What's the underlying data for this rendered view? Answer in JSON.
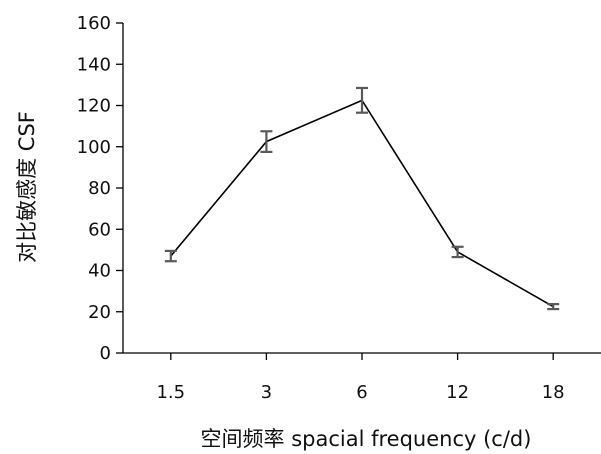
{
  "chart_data": {
    "type": "line",
    "categories": [
      "1.5",
      "3",
      "6",
      "12",
      "18"
    ],
    "values": [
      47,
      102.5,
      122.5,
      49,
      22.5
    ],
    "error": [
      2.5,
      5,
      6,
      2.5,
      1.2
    ],
    "xlabel": "空间频率 spacial frequency (c/d)",
    "ylabel": "对比敏感度 CSF",
    "ylim": [
      0,
      160
    ],
    "yticks": [
      "0",
      "20",
      "40",
      "60",
      "80",
      "100",
      "120",
      "140",
      "160"
    ],
    "grid": false,
    "line_color": "#000000",
    "errorbar_color": "#595959"
  }
}
